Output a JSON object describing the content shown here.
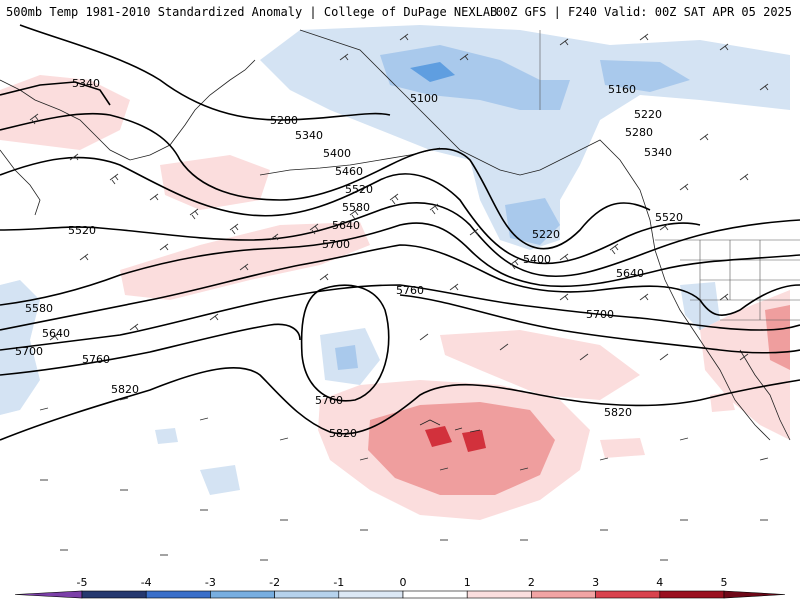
{
  "header": {
    "title_left": "500mb Temp 1981-2010 Standardized Anomaly | College of DuPage NEXLAB",
    "title_right": "00Z GFS | F240 Valid: 00Z SAT APR 05 2025"
  },
  "colorbar": {
    "ticks": [
      "-5",
      "-4",
      "-3",
      "-2",
      "-1",
      "0",
      "1",
      "2",
      "3",
      "4",
      "5"
    ],
    "colors": [
      "#7b3fa8",
      "#25386e",
      "#3a6fc9",
      "#78aee0",
      "#b6d2ec",
      "#dce8f5",
      "#ffffff",
      "#fbdede",
      "#f2a4a4",
      "#d9434e",
      "#9a1020",
      "#6e0818",
      "#f0b000"
    ]
  },
  "map": {
    "colors": {
      "cold_light": "#d4e3f3",
      "cold_mid": "#a9c9ec",
      "cold_deep": "#5f9ee0",
      "warm_light": "#fbdddd",
      "warm_mid": "#ef9e9e",
      "warm_deep": "#d2313c",
      "contour": "#000000",
      "coast": "#222222",
      "barb": "#333333"
    },
    "contour_labels": [
      {
        "text": "5340"
      },
      {
        "text": "5280"
      },
      {
        "text": "5340"
      },
      {
        "text": "5400"
      },
      {
        "text": "5460"
      },
      {
        "text": "5520"
      },
      {
        "text": "5580"
      },
      {
        "text": "5640"
      },
      {
        "text": "5700"
      },
      {
        "text": "5760"
      },
      {
        "text": "5520"
      },
      {
        "text": "5580"
      },
      {
        "text": "5640"
      },
      {
        "text": "5700"
      },
      {
        "text": "5760"
      },
      {
        "text": "5820"
      },
      {
        "text": "5760"
      },
      {
        "text": "5820"
      },
      {
        "text": "5820"
      },
      {
        "text": "5100"
      },
      {
        "text": "5160"
      },
      {
        "text": "5220"
      },
      {
        "text": "5280"
      },
      {
        "text": "5340"
      },
      {
        "text": "5220"
      },
      {
        "text": "5400"
      },
      {
        "text": "5520"
      },
      {
        "text": "5640"
      },
      {
        "text": "5700"
      }
    ]
  }
}
